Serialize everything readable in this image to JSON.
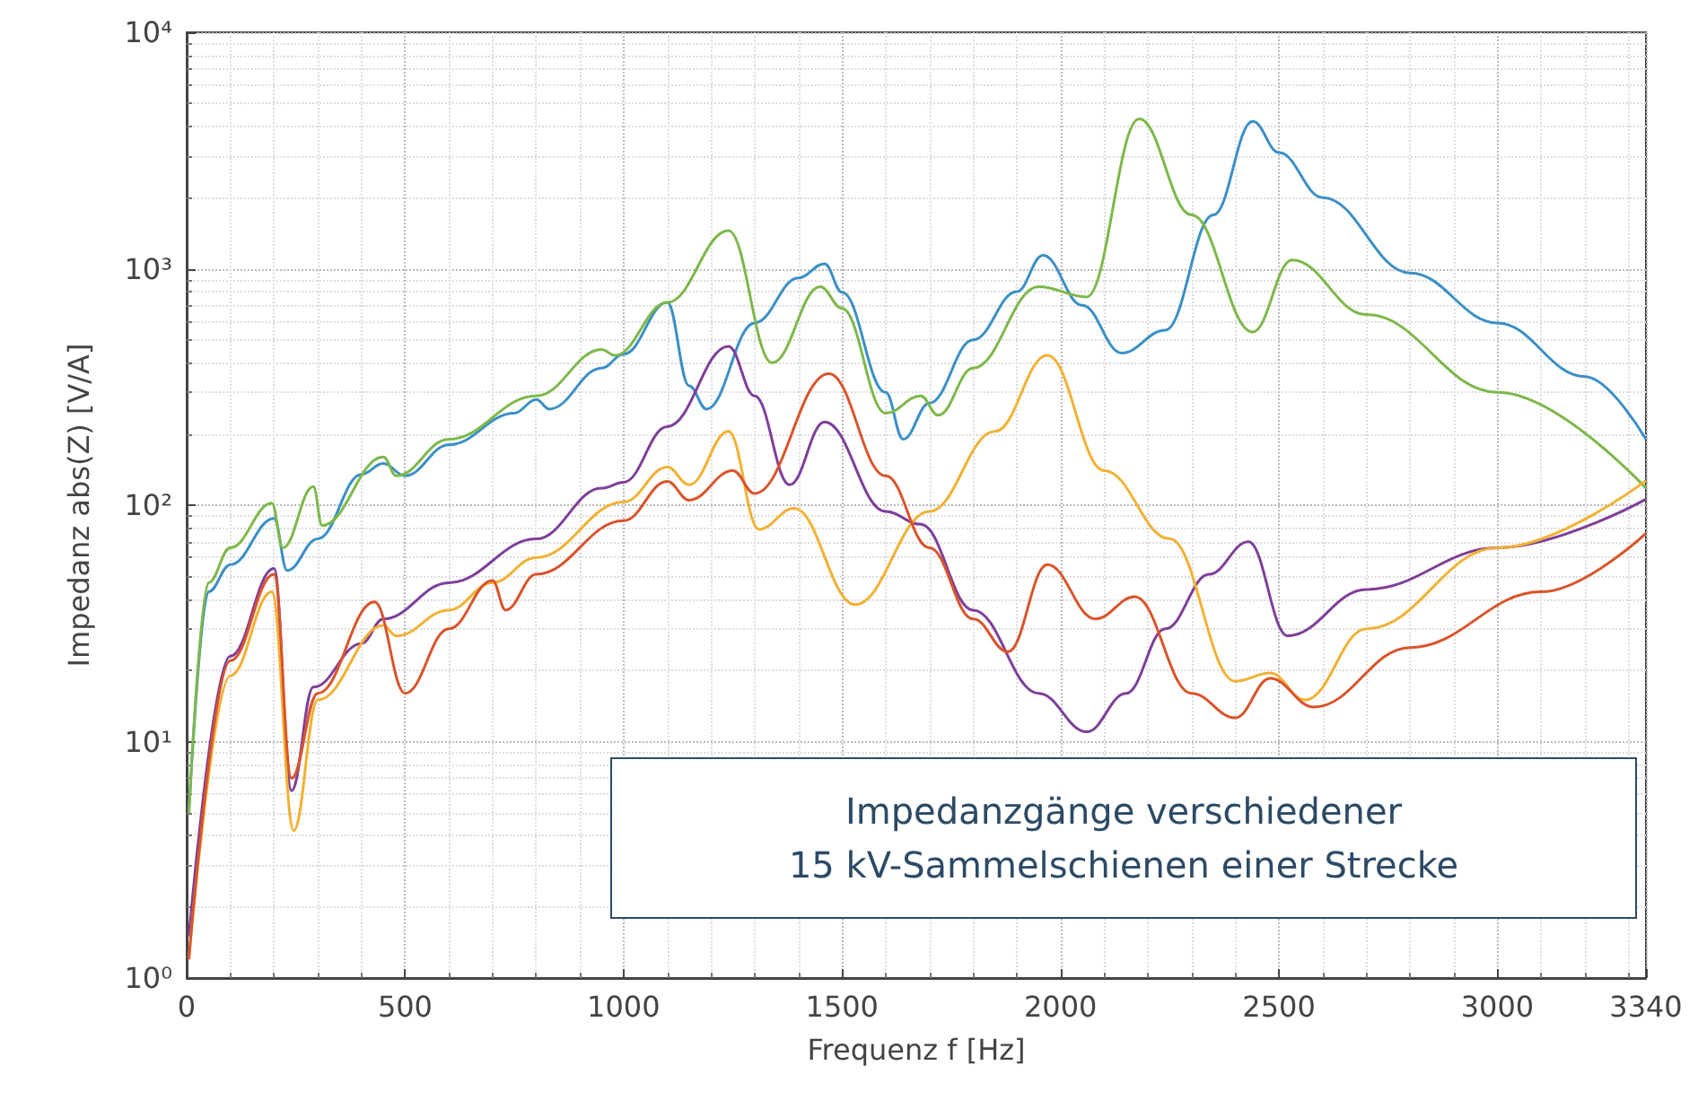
{
  "chart_data": {
    "type": "line",
    "xlabel": "Frequenz f [Hz]",
    "ylabel": "Impedanz abs(Z) [V/A]",
    "log": "y",
    "grid": true,
    "marker": "none",
    "line_style": "solid",
    "xlim": [
      0,
      3340
    ],
    "xticks": [
      0,
      500,
      1000,
      1500,
      2000,
      2500,
      3000,
      3340
    ],
    "ylim": [
      1,
      10000
    ],
    "yticks": [
      {
        "value": 1,
        "label": "10⁰"
      },
      {
        "value": 10,
        "label": "10¹"
      },
      {
        "value": 100,
        "label": "10²"
      },
      {
        "value": 1000,
        "label": "10³"
      },
      {
        "value": 10000,
        "label": "10⁴"
      }
    ],
    "annotations": [
      "Impedanzgänge verschiedener\n15 kV-Sammelschienen einer Strecke"
    ],
    "series": [
      {
        "color": "#3b8fc6",
        "x": [
          5,
          50,
          100,
          200,
          230,
          300,
          400,
          450,
          500,
          600,
          750,
          800,
          830,
          950,
          1000,
          1100,
          1150,
          1190,
          1300,
          1400,
          1460,
          1500,
          1600,
          1640,
          1700,
          1800,
          1900,
          1960,
          2050,
          2140,
          2240,
          2350,
          2440,
          2500,
          2600,
          2800,
          3000,
          3200,
          3340
        ],
        "values": [
          5,
          43,
          56,
          88,
          53,
          72,
          135,
          150,
          133,
          180,
          245,
          280,
          255,
          380,
          435,
          720,
          320,
          255,
          590,
          915,
          1050,
          795,
          300,
          190,
          270,
          500,
          800,
          1140,
          700,
          440,
          550,
          1690,
          4200,
          3100,
          2000,
          960,
          590,
          350,
          190
        ]
      },
      {
        "color": "#7db84a",
        "x": [
          5,
          50,
          100,
          195,
          220,
          290,
          310,
          450,
          480,
          600,
          800,
          950,
          980,
          1100,
          1240,
          1340,
          1450,
          1500,
          1600,
          1680,
          1720,
          1800,
          1950,
          2060,
          2180,
          2300,
          2440,
          2530,
          2700,
          3000,
          3340
        ],
        "values": [
          5,
          47,
          66,
          102,
          66,
          120,
          82,
          160,
          133,
          190,
          290,
          455,
          430,
          720,
          1450,
          400,
          840,
          680,
          245,
          290,
          240,
          380,
          840,
          760,
          4300,
          1690,
          540,
          1090,
          640,
          300,
          118
        ]
      },
      {
        "color": "#7e3f98",
        "x": [
          5,
          100,
          200,
          240,
          290,
          400,
          450,
          600,
          800,
          950,
          1000,
          1100,
          1240,
          1300,
          1380,
          1460,
          1600,
          1680,
          1800,
          1950,
          2060,
          2150,
          2240,
          2340,
          2430,
          2520,
          2700,
          3000,
          3340
        ],
        "values": [
          1.5,
          23,
          54,
          6.2,
          17,
          26,
          33,
          47,
          72,
          118,
          125,
          215,
          470,
          290,
          122,
          225,
          94,
          83,
          36,
          16,
          11,
          16,
          30,
          51,
          70,
          28,
          44,
          66,
          106
        ]
      },
      {
        "color": "#f2b134",
        "x": [
          5,
          100,
          195,
          245,
          300,
          450,
          480,
          600,
          700,
          800,
          1000,
          1100,
          1150,
          1240,
          1310,
          1390,
          1530,
          1700,
          1850,
          1970,
          2100,
          2250,
          2400,
          2480,
          2560,
          2700,
          3000,
          3340
        ],
        "values": [
          1.2,
          19,
          43,
          4.2,
          15,
          31,
          28,
          36,
          47,
          60,
          103,
          145,
          122,
          205,
          79,
          97,
          38,
          94,
          205,
          430,
          140,
          72,
          18,
          19.5,
          15,
          30,
          66,
          127
        ]
      },
      {
        "color": "#d9542b",
        "x": [
          5,
          100,
          200,
          240,
          300,
          430,
          500,
          600,
          700,
          730,
          800,
          1000,
          1100,
          1150,
          1250,
          1300,
          1470,
          1600,
          1700,
          1800,
          1880,
          1970,
          2080,
          2170,
          2300,
          2400,
          2480,
          2580,
          2800,
          3100,
          3340
        ],
        "values": [
          1.2,
          22,
          51,
          7,
          16,
          39,
          16,
          30,
          48,
          36,
          51,
          86,
          126,
          105,
          140,
          112,
          360,
          133,
          66,
          33,
          24,
          56,
          33,
          41,
          16,
          12.6,
          18.5,
          14,
          25,
          43,
          76
        ]
      }
    ]
  }
}
